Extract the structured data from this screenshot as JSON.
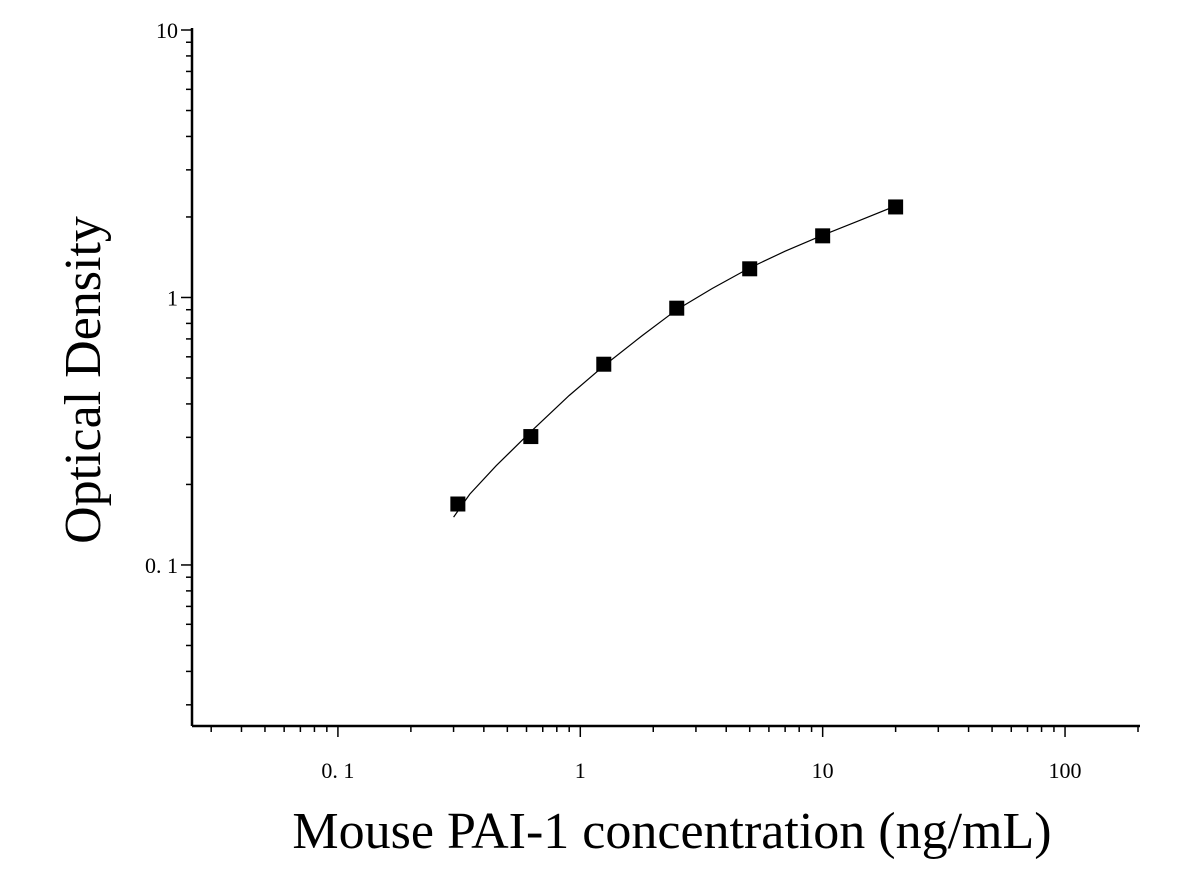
{
  "chart_data": {
    "type": "scatter",
    "title": "",
    "xlabel": "Mouse PAI-1 concentration (ng/mL)",
    "ylabel": "Optical Density",
    "xscale": "log",
    "yscale": "log",
    "xlim": [
      0.025,
      200
    ],
    "ylim": [
      0.025,
      10
    ],
    "x_ticks": [
      {
        "value": 0.1,
        "label": "0. 1"
      },
      {
        "value": 1,
        "label": "1"
      },
      {
        "value": 10,
        "label": "10"
      },
      {
        "value": 100,
        "label": "100"
      }
    ],
    "y_ticks": [
      {
        "value": 0.1,
        "label": "0. 1"
      },
      {
        "value": 1,
        "label": "1"
      },
      {
        "value": 10,
        "label": "10"
      }
    ],
    "grid": false,
    "legend": "none",
    "marker": "square",
    "series": [
      {
        "points": [
          {
            "x": 0.3125,
            "y": 0.169
          },
          {
            "x": 0.625,
            "y": 0.302
          },
          {
            "x": 1.25,
            "y": 0.563
          },
          {
            "x": 2.5,
            "y": 0.912
          },
          {
            "x": 5,
            "y": 1.28
          },
          {
            "x": 10,
            "y": 1.7
          },
          {
            "x": 20,
            "y": 2.18
          }
        ]
      }
    ],
    "fit_curve": {
      "x": [
        0.3,
        0.35,
        0.45,
        0.625,
        0.9,
        1.25,
        1.8,
        2.5,
        3.5,
        5,
        7,
        10,
        14,
        20
      ],
      "y": [
        0.151,
        0.184,
        0.235,
        0.315,
        0.43,
        0.555,
        0.72,
        0.9,
        1.08,
        1.29,
        1.49,
        1.71,
        1.93,
        2.2
      ]
    },
    "colors": {
      "marks": "#000000",
      "axis": "#000000",
      "background": "#ffffff"
    }
  }
}
